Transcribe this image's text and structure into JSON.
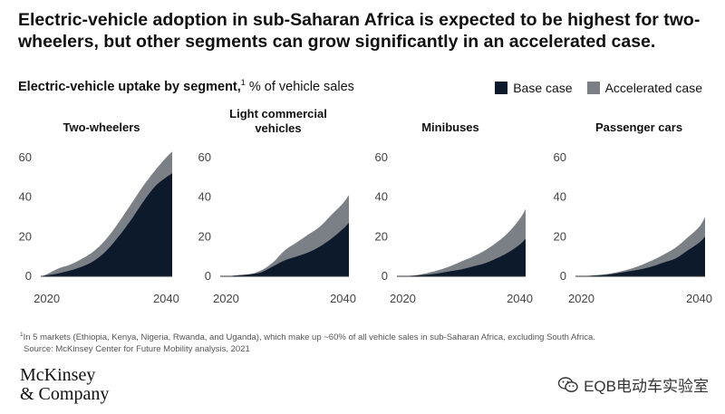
{
  "headline": "Electric-vehicle adoption in sub-Saharan Africa is expected to be highest for two-wheelers, but other segments can grow significantly in an accelerated case.",
  "subhead": {
    "bold": "Electric-vehicle uptake by segment,",
    "sup": "1",
    "rest": " % of vehicle sales"
  },
  "legend": {
    "base": "Base case",
    "accelerated": "Accelerated case"
  },
  "colors": {
    "base": "#0d1a2b",
    "accelerated": "#7b7f86",
    "axis": "#333333",
    "tick_text": "#444444"
  },
  "chart_data": [
    {
      "type": "area",
      "title": "Two-wheelers",
      "x": [
        2019,
        2020,
        2022,
        2024,
        2026,
        2028,
        2030,
        2032,
        2034,
        2036,
        2038,
        2040,
        2041
      ],
      "series": [
        {
          "name": "Base case",
          "values": [
            0,
            0.5,
            1.5,
            3,
            5,
            8,
            13,
            20,
            28,
            37,
            45,
            50,
            52
          ]
        },
        {
          "name": "Accelerated case",
          "values": [
            0,
            1,
            4,
            6,
            9,
            13,
            19,
            27,
            36,
            45,
            53,
            60,
            63
          ]
        }
      ],
      "yticks": [
        0,
        20,
        40,
        60
      ],
      "xticks": [
        "2020",
        "2040"
      ],
      "ylim": [
        0,
        65
      ]
    },
    {
      "type": "area",
      "title": "Light commercial vehicles",
      "x": [
        2019,
        2020,
        2022,
        2024,
        2026,
        2028,
        2030,
        2032,
        2034,
        2036,
        2038,
        2040,
        2041
      ],
      "series": [
        {
          "name": "Base case",
          "values": [
            0,
            0,
            0.5,
            1,
            2,
            5,
            8,
            10,
            12,
            15,
            19,
            24,
            27
          ]
        },
        {
          "name": "Accelerated case",
          "values": [
            0,
            0,
            0.5,
            1,
            3,
            7,
            13,
            17,
            21,
            25,
            31,
            37,
            41
          ]
        }
      ],
      "yticks": [
        0,
        20,
        40,
        60
      ],
      "xticks": [
        "2020",
        "2040"
      ],
      "ylim": [
        0,
        65
      ]
    },
    {
      "type": "area",
      "title": "Minibuses",
      "x": [
        2019,
        2020,
        2022,
        2024,
        2026,
        2028,
        2030,
        2032,
        2034,
        2036,
        2038,
        2040,
        2041
      ],
      "series": [
        {
          "name": "Base case",
          "values": [
            0,
            0,
            0.3,
            0.8,
            1.5,
            2.5,
            3.5,
            5,
            6.5,
            9,
            12,
            16,
            19
          ]
        },
        {
          "name": "Accelerated case",
          "values": [
            0,
            0,
            0.5,
            1.5,
            3,
            5,
            7.5,
            10,
            13,
            17,
            22,
            29,
            34
          ]
        }
      ],
      "yticks": [
        0,
        20,
        40,
        60
      ],
      "xticks": [
        "2020",
        "2040"
      ],
      "ylim": [
        0,
        65
      ]
    },
    {
      "type": "area",
      "title": "Passenger cars",
      "x": [
        2019,
        2020,
        2022,
        2024,
        2026,
        2028,
        2030,
        2032,
        2034,
        2036,
        2038,
        2040,
        2041
      ],
      "series": [
        {
          "name": "Base case",
          "values": [
            0,
            0,
            0.3,
            0.7,
            1.5,
            2.5,
            3.5,
            5,
            7,
            9,
            13,
            17,
            20
          ]
        },
        {
          "name": "Accelerated case",
          "values": [
            0,
            0,
            0.5,
            1,
            2,
            3.5,
            5.5,
            8,
            11,
            14.5,
            19.5,
            25,
            30
          ]
        }
      ],
      "yticks": [
        0,
        20,
        40,
        60
      ],
      "xticks": [
        "2020",
        "2040"
      ],
      "ylim": [
        0,
        65
      ]
    }
  ],
  "panel_titles": {
    "p0": "Two-wheelers",
    "p1": "Light commercial vehicles",
    "p2": "Minibuses",
    "p3": "Passenger cars"
  },
  "footnote": {
    "sup": "1",
    "line1": "In 5 markets (Ethiopia, Kenya, Nigeria, Rwanda, and Uganda), which make up ~60% of all vehicle sales in sub-Saharan Africa, excluding South Africa.",
    "line2": "Source: McKinsey Center for Future Mobility analysis, 2021"
  },
  "logo": {
    "line1": "McKinsey",
    "line2": "& Company"
  },
  "watermark": {
    "text": "EQB电动车实验室",
    "icon": "wechat-icon"
  }
}
